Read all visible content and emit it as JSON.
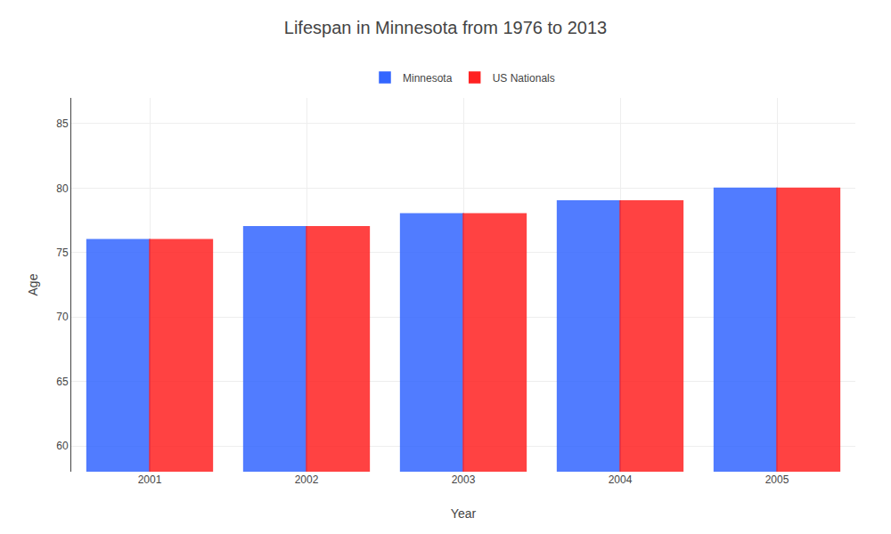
{
  "chart_data": {
    "type": "bar",
    "title": "Lifespan in Minnesota from 1976 to 2013",
    "x_label": "Year",
    "y_label": "Age",
    "categories": [
      "2001",
      "2002",
      "2003",
      "2004",
      "2005"
    ],
    "series": [
      {
        "name": "Minnesota",
        "color": "#3366ff",
        "values": [
          76,
          77,
          78,
          79,
          80
        ]
      },
      {
        "name": "US Nationals",
        "color": "#ff2222",
        "values": [
          76,
          77,
          78,
          79,
          80
        ]
      }
    ],
    "ylim": [
      58,
      87
    ],
    "yticks": [
      60,
      65,
      70,
      75,
      80,
      85
    ],
    "grid": true,
    "legend": "top"
  }
}
